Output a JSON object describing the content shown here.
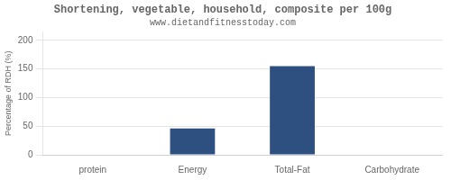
{
  "chart_data": {
    "type": "bar",
    "title": "Shortening, vegetable, household, composite per 100g",
    "subtitle": "www.dietandfitnesstoday.com",
    "categories": [
      "protein",
      "Energy",
      "Total-Fat",
      "Carbohydrate"
    ],
    "values": [
      0,
      46,
      155,
      0
    ],
    "color": "#2d5080",
    "ylabel": "Percentage of RDH (%)",
    "ylim": [
      0,
      215
    ],
    "yticks": [
      0,
      50,
      100,
      150,
      200
    ],
    "grid": true
  }
}
